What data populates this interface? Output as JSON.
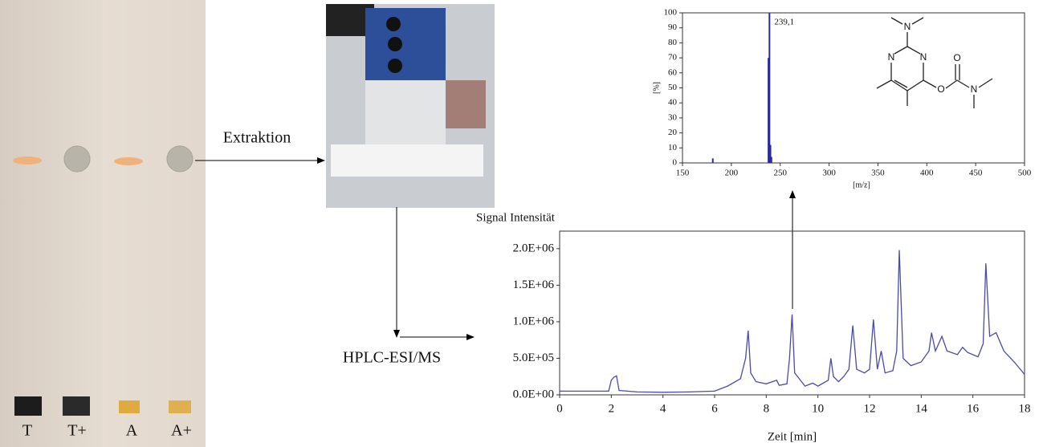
{
  "plate": {
    "lanes": [
      "T",
      "T+",
      "A",
      "A+"
    ]
  },
  "steps": {
    "extraction": "Extraktion",
    "hplc": "HPLC-ESI/MS"
  },
  "structure": {
    "atoms": [
      "N",
      "N",
      "N",
      "O",
      "O",
      "N"
    ]
  },
  "chart_data": [
    {
      "type": "stem",
      "annotation": "239,1",
      "x_label": "[m/z]",
      "y_label": "[%]",
      "color": "#2a2a9a",
      "x": [
        181,
        238,
        239,
        240,
        241
      ],
      "values": [
        3,
        70,
        100,
        12,
        4
      ],
      "xlim": [
        150,
        500
      ],
      "xticks": [
        150,
        200,
        250,
        300,
        350,
        400,
        450,
        500
      ],
      "ylim": [
        0,
        100
      ],
      "yticks": [
        0,
        10,
        20,
        30,
        40,
        50,
        60,
        70,
        80,
        90,
        100
      ]
    },
    {
      "type": "line",
      "x_label": "Zeit [min]",
      "y_label": "Signal Intensität",
      "color": "#4a4aa8",
      "x": [
        0,
        1.9,
        2.0,
        2.1,
        2.2,
        2.3,
        3,
        4,
        5,
        6,
        6.5,
        7.0,
        7.2,
        7.3,
        7.4,
        7.6,
        8,
        8.4,
        8.5,
        8.8,
        8.9,
        9.0,
        9.1,
        9.5,
        9.8,
        10,
        10.4,
        10.5,
        10.6,
        10.8,
        11.0,
        11.2,
        11.35,
        11.5,
        11.8,
        12.0,
        12.15,
        12.3,
        12.45,
        12.6,
        12.9,
        13.05,
        13.15,
        13.3,
        13.6,
        14.0,
        14.3,
        14.4,
        14.55,
        14.8,
        15,
        15.4,
        15.6,
        15.8,
        16.2,
        16.4,
        16.5,
        16.65,
        16.9,
        17.2,
        17.6,
        18
      ],
      "values": [
        50000,
        50000,
        200000,
        240000,
        260000,
        60000,
        40000,
        35000,
        40000,
        50000,
        120000,
        220000,
        500000,
        880000,
        300000,
        180000,
        150000,
        200000,
        130000,
        150000,
        500000,
        1100000,
        300000,
        120000,
        160000,
        120000,
        200000,
        500000,
        250000,
        180000,
        250000,
        350000,
        950000,
        350000,
        300000,
        350000,
        1030000,
        350000,
        600000,
        300000,
        330000,
        600000,
        1980000,
        500000,
        400000,
        450000,
        600000,
        850000,
        600000,
        800000,
        600000,
        550000,
        650000,
        580000,
        520000,
        700000,
        1800000,
        800000,
        850000,
        600000,
        450000,
        280000
      ],
      "xlim": [
        0,
        18
      ],
      "xticks": [
        0,
        2,
        4,
        6,
        8,
        10,
        12,
        14,
        16,
        18
      ],
      "ylim": [
        0,
        2240000
      ],
      "yticks": [
        {
          "value": 0,
          "label": "0.0E+00"
        },
        {
          "value": 500000,
          "label": "5.0E+05"
        },
        {
          "value": 1000000,
          "label": "1.0E+06"
        },
        {
          "value": 1500000,
          "label": "1.5E+06"
        },
        {
          "value": 2000000,
          "label": "2.0E+06"
        }
      ]
    }
  ]
}
